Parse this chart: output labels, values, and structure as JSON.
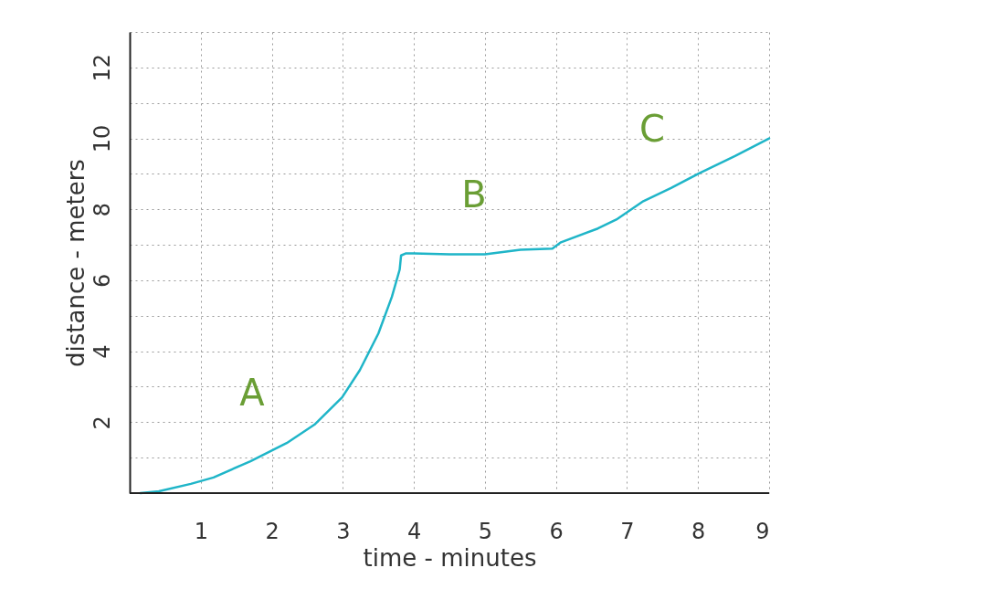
{
  "chart_data": {
    "type": "line",
    "xlabel": "time - minutes",
    "ylabel": "distance - meters",
    "x": [
      0.15,
      0.41,
      0.86,
      1.18,
      1.7,
      2.21,
      2.6,
      2.99,
      3.24,
      3.5,
      3.69,
      3.8,
      3.82,
      3.89,
      4.0,
      4.5,
      5.0,
      5.5,
      5.95,
      6.07,
      6.59,
      6.85,
      7.23,
      7.62,
      8.0,
      8.52,
      9.0
    ],
    "series": [
      {
        "color": "#1fb5c8",
        "values": [
          0,
          0.05,
          0.26,
          0.44,
          0.9,
          1.41,
          1.93,
          2.7,
          3.47,
          4.5,
          5.53,
          6.3,
          6.7,
          6.76,
          6.76,
          6.73,
          6.73,
          6.86,
          6.89,
          7.07,
          7.46,
          7.71,
          8.23,
          8.6,
          9.0,
          9.5,
          10.0
        ]
      }
    ],
    "xlim": [
      0,
      9
    ],
    "xticks": [
      1,
      2,
      3,
      4,
      5,
      6,
      7,
      8,
      9
    ],
    "ylim": [
      0,
      13
    ],
    "yticks": [
      {
        "value": 1,
        "label": null
      },
      2,
      {
        "value": 3,
        "label": null
      },
      4,
      {
        "value": 5,
        "label": null
      },
      6,
      {
        "value": 7,
        "label": null
      },
      8,
      {
        "value": 9,
        "label": null
      },
      10,
      {
        "value": 11,
        "label": null
      },
      12,
      {
        "value": 13,
        "label": null
      }
    ],
    "grid": true,
    "marker": "none",
    "line_style": "solid",
    "annotations": [
      "A",
      "B",
      "C"
    ]
  }
}
